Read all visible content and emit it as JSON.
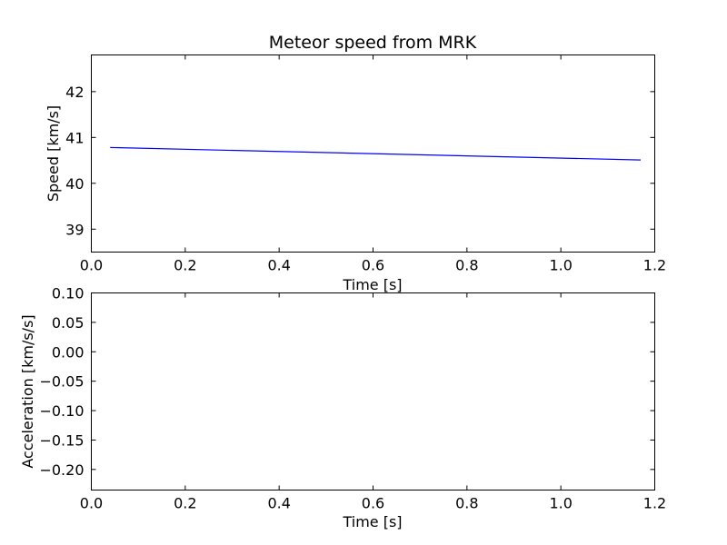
{
  "chart_data": [
    {
      "type": "line",
      "title": "Meteor speed from  MRK",
      "xlabel": "Time [s]",
      "ylabel": "Speed [km/s]",
      "xlim": [
        0.0,
        1.2
      ],
      "ylim": [
        38.5,
        42.8
      ],
      "xticks": [
        0.0,
        0.2,
        0.4,
        0.6,
        0.8,
        1.0,
        1.2
      ],
      "xtick_labels": [
        "0.0",
        "0.2",
        "0.4",
        "0.6",
        "0.8",
        "1.0",
        "1.2"
      ],
      "yticks": [
        39,
        40,
        41,
        42
      ],
      "ytick_labels": [
        "39",
        "40",
        "41",
        "42"
      ],
      "grid": false,
      "series": [
        {
          "color": "#0000ff",
          "x": [
            0.04,
            1.17
          ],
          "y": [
            40.78,
            40.51
          ]
        }
      ]
    },
    {
      "type": "line",
      "title": "",
      "xlabel": "Time [s]",
      "ylabel": "Acceleration [km/s/s]",
      "xlim": [
        0.0,
        1.2
      ],
      "ylim": [
        -0.235,
        0.1
      ],
      "xticks": [
        0.0,
        0.2,
        0.4,
        0.6,
        0.8,
        1.0,
        1.2
      ],
      "xtick_labels": [
        "0.0",
        "0.2",
        "0.4",
        "0.6",
        "0.8",
        "1.0",
        "1.2"
      ],
      "yticks": [
        0.1,
        0.05,
        0.0,
        -0.05,
        -0.1,
        -0.15,
        -0.2
      ],
      "ytick_labels": [
        "0.10",
        "0.05",
        "0.00",
        "−0.05",
        "−0.10",
        "−0.15",
        "−0.20"
      ],
      "grid": false,
      "series": []
    }
  ]
}
